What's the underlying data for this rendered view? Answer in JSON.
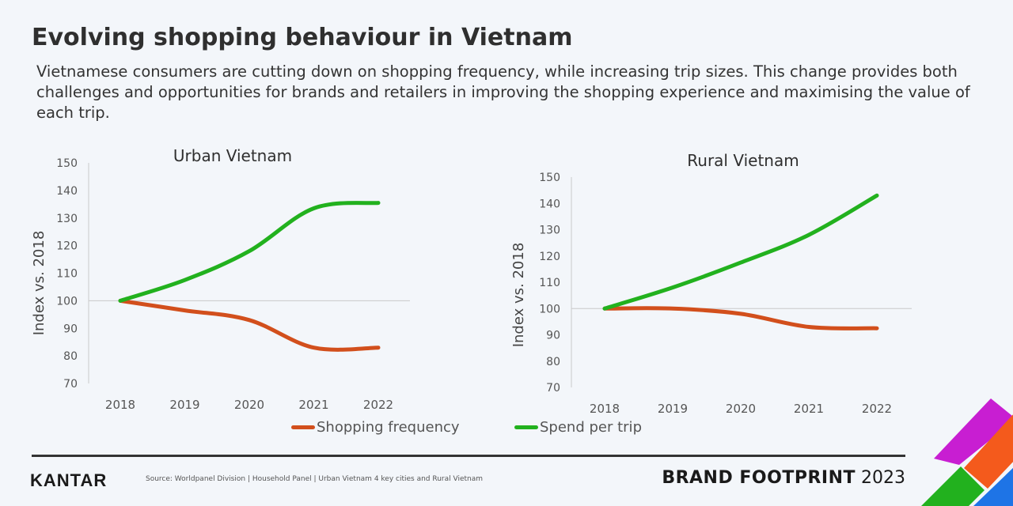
{
  "header": {
    "title": "Evolving shopping behaviour in Vietnam",
    "subtitle": "Vietnamese consumers are cutting down on shopping frequency, while increasing trip sizes. This change provides both challenges and opportunities for brands and retailers in improving the shopping experience and maximising the value of each trip."
  },
  "chart_data": [
    {
      "type": "line",
      "title": "Urban Vietnam",
      "ylabel": "Index vs. 2018",
      "xlabel": "",
      "x": [
        "2018",
        "2019",
        "2020",
        "2021",
        "2022"
      ],
      "ylim": [
        70,
        150
      ],
      "yticks": [
        70,
        80,
        90,
        100,
        110,
        120,
        130,
        140,
        150
      ],
      "reference_line": 100,
      "series": [
        {
          "name": "Shopping frequency",
          "color": "#d24f1c",
          "values": [
            100,
            96.5,
            93,
            83,
            83
          ]
        },
        {
          "name": "Spend per trip",
          "color": "#22b11e",
          "values": [
            100,
            107.5,
            118,
            133.5,
            135.5
          ]
        }
      ]
    },
    {
      "type": "line",
      "title": "Rural Vietnam",
      "ylabel": "Index vs. 2018",
      "xlabel": "",
      "x": [
        "2018",
        "2019",
        "2020",
        "2021",
        "2022"
      ],
      "ylim": [
        70,
        150
      ],
      "yticks": [
        70,
        80,
        90,
        100,
        110,
        120,
        130,
        140,
        150
      ],
      "reference_line": 100,
      "series": [
        {
          "name": "Shopping frequency",
          "color": "#d24f1c",
          "values": [
            100,
            100,
            98,
            93,
            92.5
          ]
        },
        {
          "name": "Spend per trip",
          "color": "#22b11e",
          "values": [
            100,
            108,
            117.5,
            128,
            143
          ]
        }
      ]
    }
  ],
  "legend": [
    {
      "label": "Shopping frequency",
      "color": "#d24f1c"
    },
    {
      "label": "Spend per trip",
      "color": "#22b11e"
    }
  ],
  "footer": {
    "logo": "KANTAR",
    "source": "Source: Worldpanel Division | Household Panel | Urban Vietnam 4 key cities and Rural Vietnam",
    "brand_bold": "BRAND FOOTPRINT",
    "year": "2023"
  },
  "decoration": {
    "colors": [
      "#c81ed2",
      "#f45a1c",
      "#22b11e",
      "#1e74e6"
    ]
  }
}
